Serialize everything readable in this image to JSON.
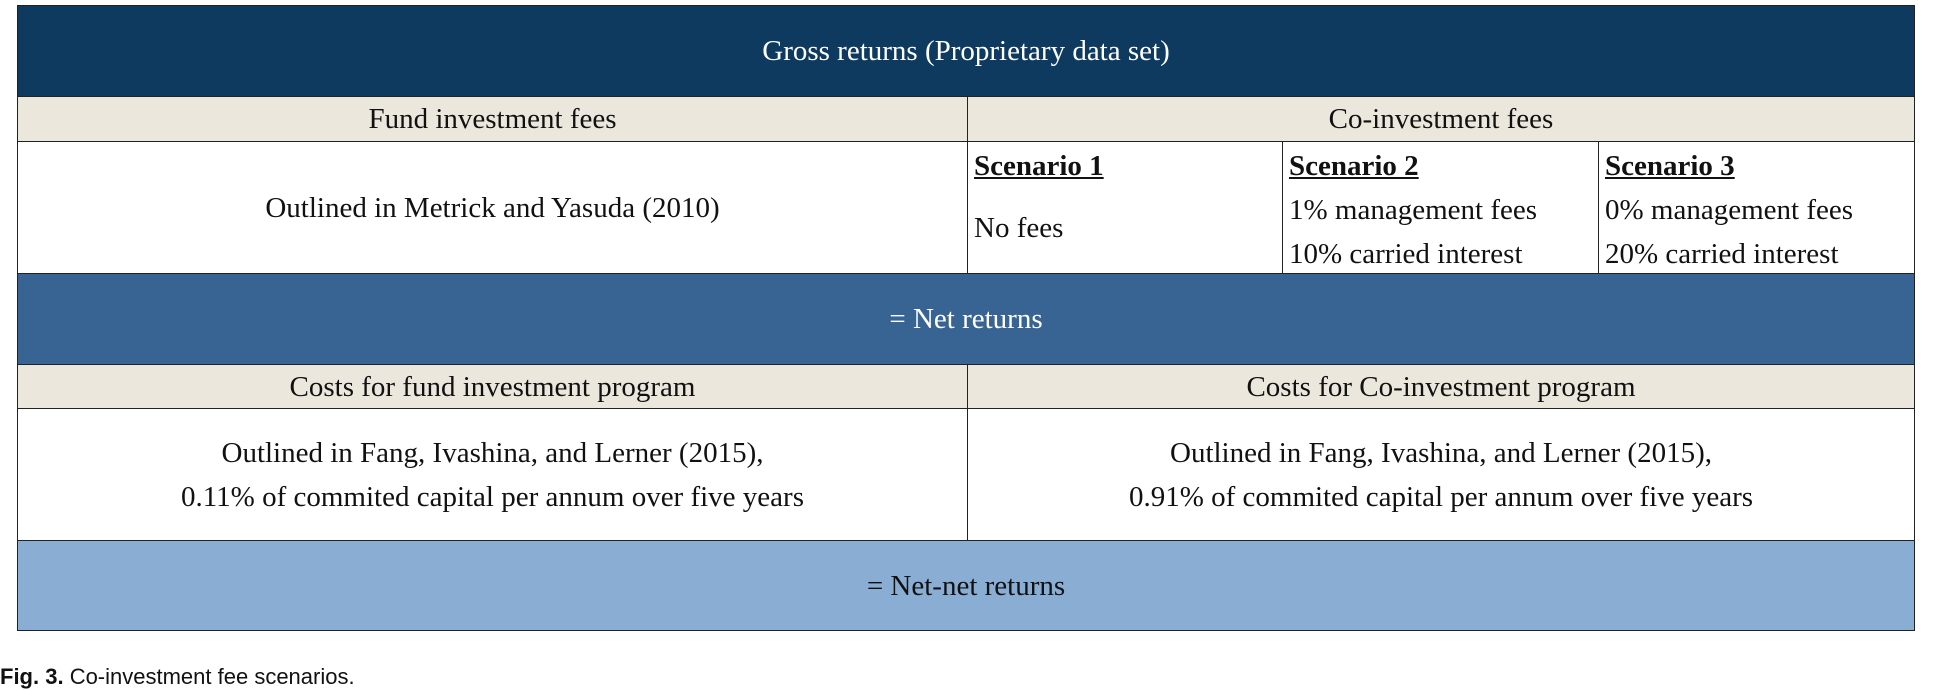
{
  "header": {
    "title": "Gross returns (Proprietary data set)"
  },
  "fees": {
    "fund_header": "Fund investment fees",
    "coinvest_header": "Co-investment fees",
    "fund_text": "Outlined in Metrick and Yasuda (2010)",
    "scenarios": [
      {
        "title": "Scenario 1",
        "lines": [
          "No fees"
        ]
      },
      {
        "title": "Scenario 2",
        "lines": [
          "1% management fees",
          "10% carried interest"
        ]
      },
      {
        "title": "Scenario 3",
        "lines": [
          "0% management fees",
          "20% carried interest"
        ]
      }
    ]
  },
  "net_returns": "= Net returns",
  "costs": {
    "fund_header": "Costs for fund investment program",
    "coinvest_header": "Costs for Co-investment program",
    "fund_lines": [
      "Outlined in Fang, Ivashina, and Lerner (2015),",
      "0.11% of commited capital per annum over five years"
    ],
    "coinvest_lines": [
      "Outlined in Fang, Ivashina, and Lerner (2015),",
      "0.91% of commited capital per annum over five years"
    ]
  },
  "net_net_returns": "= Net-net returns",
  "caption": {
    "label": "Fig. 3.",
    "text": "Co-investment fee scenarios."
  }
}
